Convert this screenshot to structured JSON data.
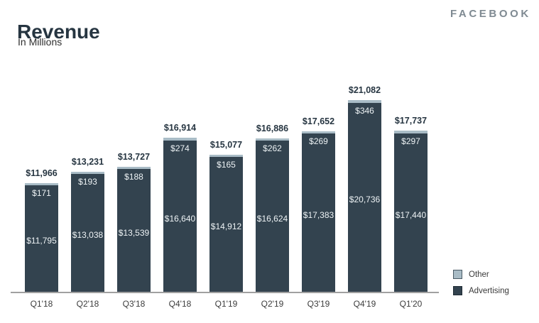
{
  "header": {
    "title": "Revenue",
    "subtitle": "In Millions",
    "brand": "FACEBOOK"
  },
  "chart_data": {
    "type": "bar",
    "stacked": true,
    "title": "Revenue",
    "subtitle": "In Millions",
    "categories": [
      "Q1'18",
      "Q2'18",
      "Q3'18",
      "Q4'18",
      "Q1'19",
      "Q2'19",
      "Q3'19",
      "Q4'19",
      "Q1'20"
    ],
    "series": [
      {
        "name": "Other",
        "color": "#a9bcc6",
        "border": "#4a5b66",
        "values": [
          171,
          193,
          188,
          274,
          165,
          262,
          269,
          346,
          297
        ]
      },
      {
        "name": "Advertising",
        "color": "#33434f",
        "border": "#1f2b33",
        "values": [
          11795,
          13038,
          13539,
          16640,
          14912,
          16624,
          17383,
          20736,
          17440
        ]
      }
    ],
    "totals": [
      11966,
      13231,
      13727,
      16914,
      15077,
      16886,
      17652,
      21082,
      17737
    ],
    "value_prefix": "$",
    "ylim": [
      0,
      21082
    ],
    "grid": false,
    "legend_position": "bottom-right",
    "axis_line_color": "#a0a0a0",
    "total_label_color": "#263541",
    "inbar_label_color": "#eef3f5"
  }
}
